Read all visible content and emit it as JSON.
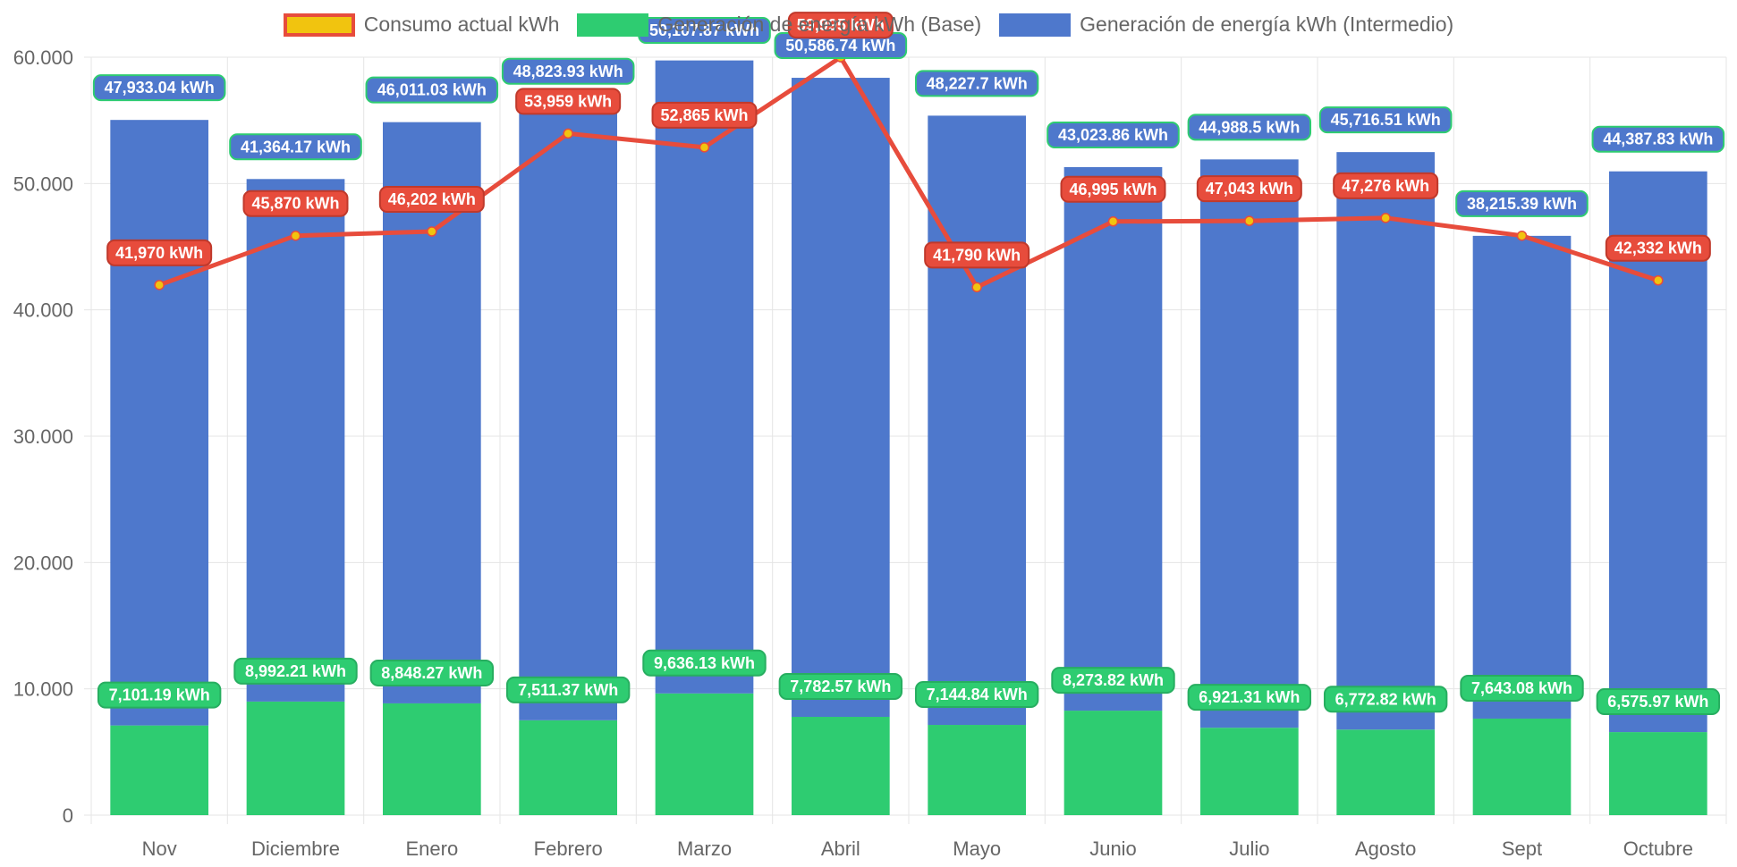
{
  "colors": {
    "consumo_line": "#e74c3c",
    "consumo_point": "#f1c40f",
    "base": "#2ecc71",
    "intermedio": "#4e78cc",
    "grid": "#e5e5e5",
    "tick_text": "#666666"
  },
  "legend": [
    {
      "label": "Consumo actual kWh",
      "color": "#f1c40f",
      "border": "#e74c3c"
    },
    {
      "label": "Generación de energía kWh (Base)",
      "color": "#2ecc71",
      "border": "#2ecc71"
    },
    {
      "label": "Generación de energía kWh (Intermedio)",
      "color": "#4e78cc",
      "border": "#4e78cc"
    }
  ],
  "chart_data": {
    "type": "bar",
    "stacked": true,
    "categories": [
      "Nov",
      "Diciembre",
      "Enero",
      "Febrero",
      "Marzo",
      "Abril",
      "Mayo",
      "Junio",
      "Julio",
      "Agosto",
      "Sept",
      "Octubre"
    ],
    "ylim": [
      0,
      60000
    ],
    "yticks": [
      0,
      10000,
      20000,
      30000,
      40000,
      50000,
      60000
    ],
    "ytick_labels": [
      "0",
      "10.000",
      "20.000",
      "30.000",
      "40.000",
      "50.000",
      "60.000"
    ],
    "grid": true,
    "legend_position": "top-center",
    "series": [
      {
        "name": "Generación de energía kWh (Base)",
        "type": "bar",
        "values": [
          7101.19,
          8992.21,
          8848.27,
          7511.37,
          9636.13,
          7782.57,
          7144.84,
          8273.82,
          6921.31,
          6772.82,
          7643.08,
          6575.97
        ],
        "labels": [
          "7,101.19 kWh",
          "8,992.21 kWh",
          "8,848.27 kWh",
          "7,511.37 kWh",
          "9,636.13 kWh",
          "7,782.57 kWh",
          "7,144.84 kWh",
          "8,273.82 kWh",
          "6,921.31 kWh",
          "6,772.82 kWh",
          "7,643.08 kWh",
          "6,575.97 kWh"
        ]
      },
      {
        "name": "Generación de energía kWh (Intermedio)",
        "type": "bar",
        "values": [
          47933.04,
          41364.17,
          46011.03,
          48823.93,
          50107.87,
          50586.74,
          48227.7,
          43023.86,
          44988.5,
          45716.51,
          38215.39,
          44387.83
        ],
        "labels": [
          "47,933.04 kWh",
          "41,364.17 kWh",
          "46,011.03 kWh",
          "48,823.93 kWh",
          "50,107.87 kWh",
          "50,586.74 kWh",
          "48,227.7 kWh",
          "43,023.86 kWh",
          "44,988.5 kWh",
          "45,716.51 kWh",
          "38,215.39 kWh",
          "44,387.83 kWh"
        ]
      },
      {
        "name": "Consumo actual kWh",
        "type": "line",
        "values": [
          41970,
          45870,
          46202,
          53959,
          52865,
          59995,
          41790,
          46995,
          47043,
          47276,
          45870,
          42332
        ],
        "labels": [
          "41,970 kWh",
          "45,870 kWh",
          "46,202 kWh",
          "53,959 kWh",
          "52,865 kWh",
          "59,995 kWh",
          "41,790 kWh",
          "46,995 kWh",
          "47,043 kWh",
          "47,276 kWh",
          "",
          "42,332 kWh"
        ]
      }
    ]
  }
}
